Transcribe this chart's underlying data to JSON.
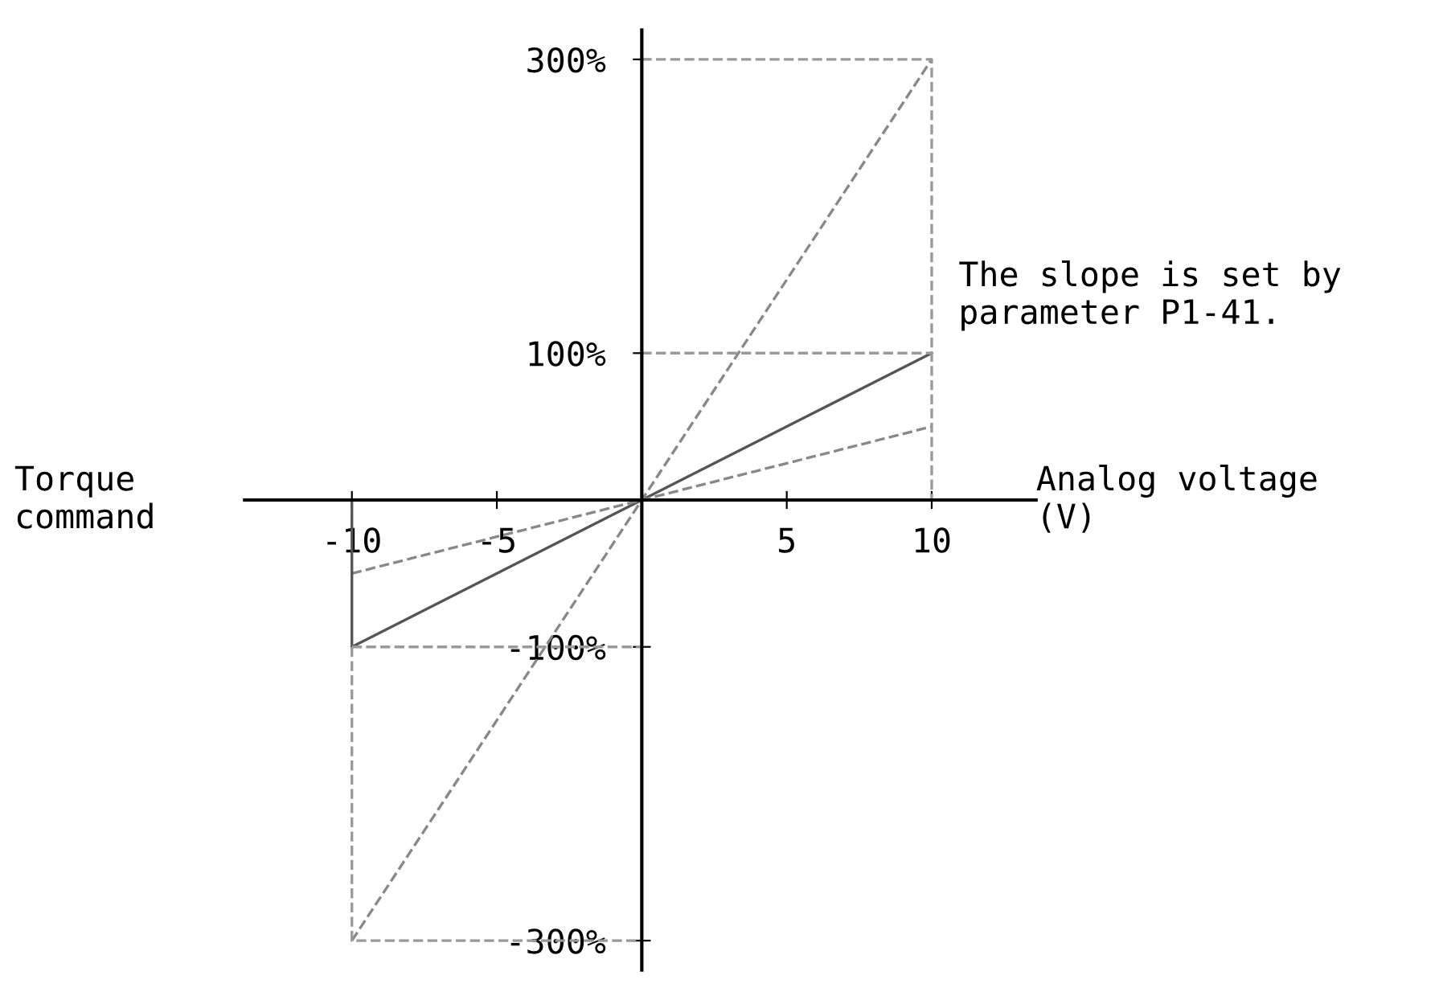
{
  "chart_data": {
    "type": "line",
    "xlabel": "Analog voltage\n(V)",
    "ylabel": "Torque\ncommand",
    "annotations": [
      {
        "text": "The slope is set by\nparameter P1-41.",
        "x": 10,
        "y": 100
      }
    ],
    "xlim": [
      -13.7,
      13.6
    ],
    "ylim": [
      -320,
      320
    ],
    "xticks": [
      -10,
      -5,
      5,
      10
    ],
    "yticks": [
      {
        "value": -300,
        "label": "-300%"
      },
      {
        "value": -100,
        "label": "-100%"
      },
      {
        "value": 100,
        "label": "100%"
      },
      {
        "value": 300,
        "label": "300%"
      }
    ],
    "grid": false,
    "legend": false,
    "series": [
      {
        "color": "#555555",
        "line_style": "solid",
        "x": [
          -10,
          0,
          10
        ],
        "values": [
          -100,
          0,
          100
        ]
      },
      {
        "color": "#888888",
        "line_style": "dashed",
        "x": [
          -10,
          0,
          10
        ],
        "values": [
          -300,
          0,
          300
        ]
      },
      {
        "color": "#888888",
        "line_style": "dashed",
        "x": [
          -10,
          0,
          10
        ],
        "values": [
          -50,
          0,
          50
        ]
      },
      {
        "color": "#999999",
        "line_style": "dashed",
        "x": [
          0,
          10,
          10
        ],
        "values": [
          300,
          300,
          0
        ]
      },
      {
        "color": "#999999",
        "line_style": "dashed",
        "x": [
          0,
          10
        ],
        "values": [
          100,
          100
        ]
      },
      {
        "color": "#555555",
        "line_style": "solid",
        "x": [
          -10,
          -10
        ],
        "values": [
          0,
          -100
        ]
      },
      {
        "color": "#999999",
        "line_style": "dashed",
        "x": [
          -10,
          -10,
          0
        ],
        "values": [
          -100,
          -300,
          -300
        ]
      },
      {
        "color": "#999999",
        "line_style": "dashed",
        "x": [
          -10,
          0
        ],
        "values": [
          -100,
          -100
        ]
      }
    ]
  }
}
